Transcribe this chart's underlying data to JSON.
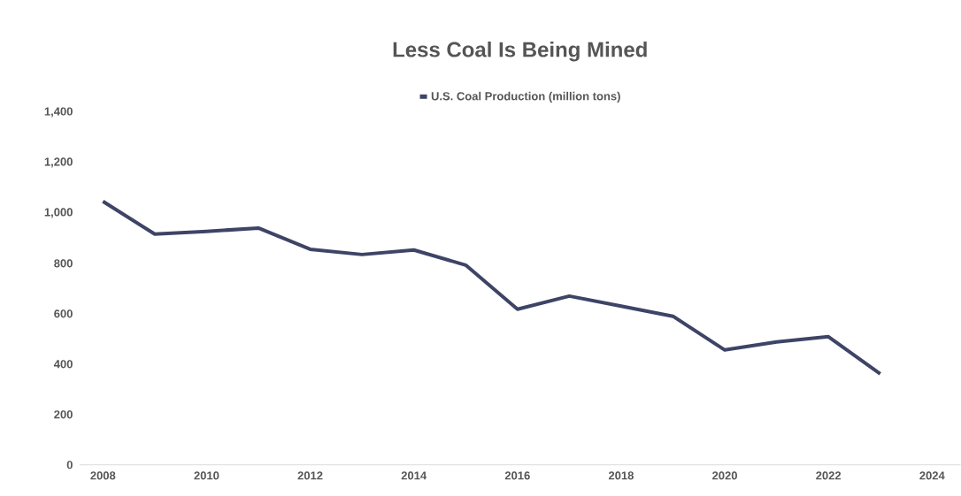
{
  "chart_data": {
    "type": "line",
    "title": "Less Coal Is Being Mined",
    "x": [
      2008,
      2009,
      2010,
      2011,
      2012,
      2013,
      2014,
      2015,
      2016,
      2017,
      2018,
      2019,
      2020,
      2021,
      2022,
      2023
    ],
    "series": [
      {
        "name": "U.S. Coal Production (million tons)",
        "color": "#3d4466",
        "values": [
          1046,
          916,
          927,
          940,
          856,
          835,
          853,
          793,
          618,
          670,
          630,
          590,
          456,
          488,
          509,
          361
        ]
      }
    ],
    "xlim": [
      2007.55,
      2024.55
    ],
    "xticks": [
      2008,
      2010,
      2012,
      2014,
      2016,
      2018,
      2020,
      2022,
      2024
    ],
    "ylim": [
      0,
      1400
    ],
    "yticks": [
      0,
      200,
      400,
      600,
      800,
      {
        "value": 1000,
        "label": "1,000"
      },
      {
        "value": 1200,
        "label": "1,200"
      },
      {
        "value": 1400,
        "label": "1,400"
      }
    ],
    "legend": "top",
    "marker": "none",
    "line_style": "solid"
  }
}
